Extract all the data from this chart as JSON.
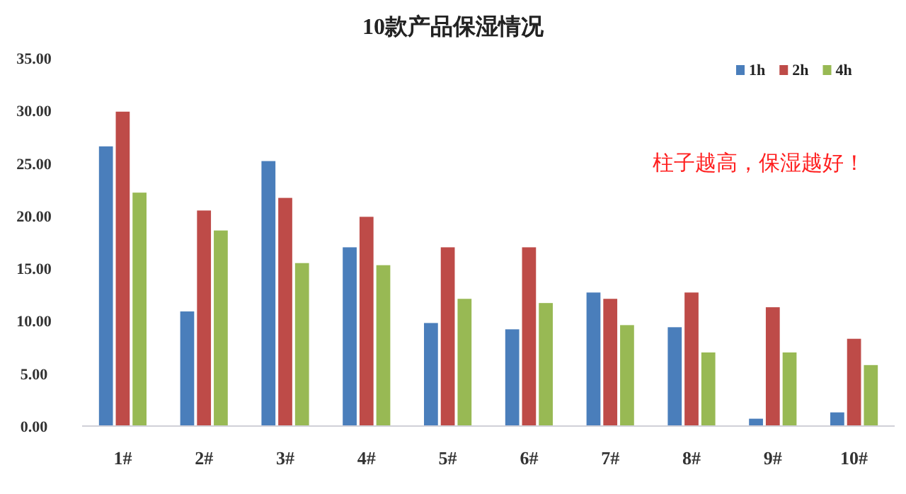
{
  "chart_data": {
    "type": "bar",
    "title": "10款产品保湿情况",
    "categories": [
      "1#",
      "2#",
      "3#",
      "4#",
      "5#",
      "6#",
      "7#",
      "8#",
      "9#",
      "10#"
    ],
    "series": [
      {
        "name": "1h",
        "color": "#4a7ebb",
        "values": [
          26.6,
          10.9,
          25.2,
          17.0,
          9.8,
          9.2,
          12.7,
          9.4,
          0.7,
          1.3
        ]
      },
      {
        "name": "2h",
        "color": "#be4b48",
        "values": [
          29.9,
          20.5,
          21.7,
          19.9,
          17.0,
          17.0,
          12.1,
          12.7,
          11.3,
          8.3
        ]
      },
      {
        "name": "4h",
        "color": "#98b954",
        "values": [
          22.2,
          18.6,
          15.5,
          15.3,
          12.1,
          11.7,
          9.6,
          7.0,
          7.0,
          5.8
        ]
      }
    ],
    "ylim": [
      0,
      35
    ],
    "yticks": [
      {
        "value": 0,
        "label": "0.00"
      },
      {
        "value": 5,
        "label": "5.00"
      },
      {
        "value": 10,
        "label": "10.00"
      },
      {
        "value": 15,
        "label": "15.00"
      },
      {
        "value": 20,
        "label": "20.00"
      },
      {
        "value": 25,
        "label": "25.00"
      },
      {
        "value": 30,
        "label": "30.00"
      },
      {
        "value": 35,
        "label": "35.00"
      }
    ],
    "legend": "top right",
    "annotations": [
      "柱子越高，保湿越好！"
    ]
  }
}
